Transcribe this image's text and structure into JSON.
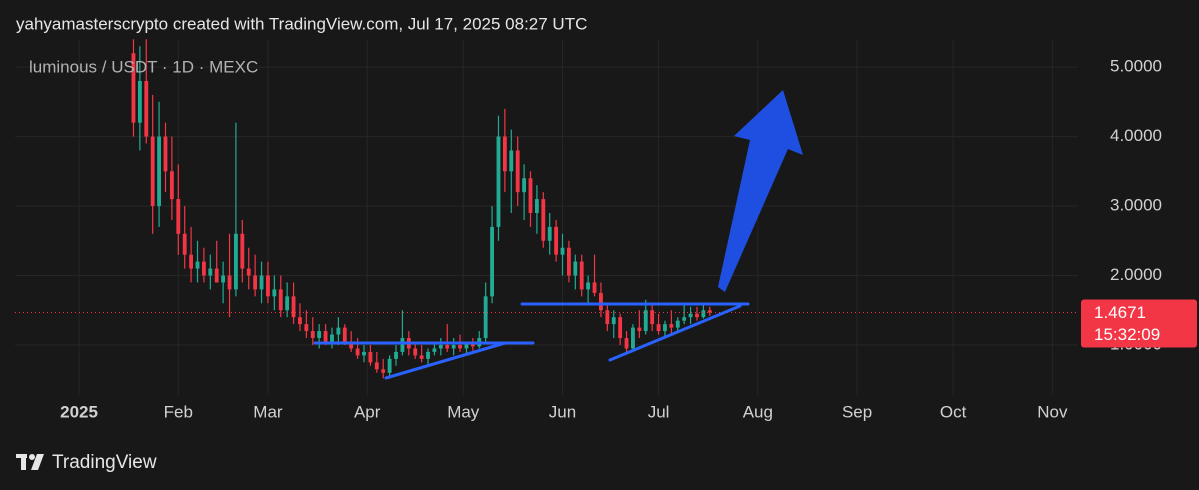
{
  "header": {
    "text": "yahyamasterscrypto created with TradingView.com, Jul 17, 2025 08:27 UTC"
  },
  "footer": {
    "brand": "TradingView"
  },
  "chart_data": {
    "type": "candlestick",
    "title": "luminous / USDT · 1D · MEXC",
    "x": [
      17,
      19,
      21,
      23,
      25,
      27,
      29,
      31,
      33,
      35,
      37,
      39,
      41,
      43,
      45,
      47,
      49,
      51,
      53,
      55,
      57,
      59,
      61,
      63,
      65,
      67,
      69,
      71,
      73,
      75,
      77,
      79,
      81,
      83,
      85,
      87,
      89,
      91,
      93,
      95,
      97,
      99,
      101,
      103,
      105,
      107,
      109,
      111,
      113,
      115,
      117,
      119,
      121,
      123,
      125,
      127,
      129,
      131,
      133,
      135,
      137,
      139,
      141,
      143,
      145,
      147,
      149,
      151,
      153,
      155,
      157,
      159,
      161,
      163,
      165,
      167,
      169,
      171,
      173,
      175,
      177,
      179,
      181,
      183,
      185,
      187,
      189,
      191,
      193,
      195,
      197
    ],
    "open": [
      5.2,
      4.2,
      4.8,
      4.0,
      3.0,
      4.0,
      3.5,
      3.1,
      2.6,
      2.3,
      2.1,
      2.2,
      2.0,
      2.1,
      1.9,
      2.0,
      1.8,
      2.6,
      2.1,
      2.0,
      1.8,
      2.0,
      1.7,
      1.8,
      1.5,
      1.7,
      1.4,
      1.3,
      1.2,
      1.1,
      1.2,
      1.05,
      1.15,
      1.25,
      1.05,
      0.95,
      0.85,
      0.9,
      0.75,
      0.65,
      0.6,
      0.8,
      0.9,
      1.1,
      0.95,
      0.85,
      0.8,
      0.9,
      0.95,
      1.0,
      0.95,
      1.0,
      0.95,
      1.02,
      0.98,
      1.1,
      1.7,
      2.7,
      4.0,
      3.5,
      3.8,
      3.2,
      3.4,
      2.9,
      3.1,
      2.5,
      2.7,
      2.3,
      2.4,
      2.0,
      2.2,
      1.8,
      1.9,
      1.75,
      1.5,
      1.3,
      1.4,
      1.1,
      0.95,
      1.25,
      1.2,
      1.5,
      1.3,
      1.2,
      1.3,
      1.25,
      1.35,
      1.4,
      1.45,
      1.4,
      1.5
    ],
    "high": [
      5.4,
      5.3,
      5.4,
      4.6,
      4.5,
      4.2,
      4.0,
      3.6,
      3.0,
      2.7,
      2.5,
      2.4,
      2.3,
      2.5,
      2.2,
      2.6,
      4.2,
      2.8,
      2.4,
      2.3,
      2.2,
      2.2,
      2.0,
      2.0,
      1.9,
      1.9,
      1.6,
      1.5,
      1.4,
      1.3,
      1.3,
      1.25,
      1.4,
      1.3,
      1.2,
      1.1,
      1.0,
      1.0,
      0.9,
      0.8,
      0.85,
      1.0,
      1.5,
      1.2,
      1.05,
      1.0,
      0.95,
      1.05,
      1.1,
      1.3,
      1.1,
      1.15,
      1.05,
      1.1,
      1.2,
      1.9,
      3.0,
      4.3,
      4.4,
      4.1,
      4.0,
      3.6,
      3.5,
      3.3,
      3.2,
      2.9,
      2.8,
      2.6,
      2.5,
      2.3,
      2.3,
      2.0,
      2.3,
      1.9,
      1.6,
      1.5,
      1.45,
      1.2,
      1.3,
      1.5,
      1.65,
      1.6,
      1.45,
      1.35,
      1.5,
      1.4,
      1.6,
      1.55,
      1.55,
      1.6,
      1.55
    ],
    "low": [
      4.0,
      3.8,
      3.9,
      2.6,
      2.7,
      3.2,
      2.8,
      2.3,
      2.1,
      1.9,
      1.9,
      1.9,
      1.8,
      1.9,
      1.6,
      1.4,
      1.7,
      1.9,
      1.8,
      1.7,
      1.6,
      1.6,
      1.5,
      1.4,
      1.4,
      1.3,
      1.2,
      1.1,
      1.0,
      0.95,
      1.0,
      0.95,
      1.0,
      1.0,
      0.9,
      0.8,
      0.75,
      0.7,
      0.6,
      0.52,
      0.55,
      0.7,
      0.85,
      0.85,
      0.8,
      0.75,
      0.72,
      0.85,
      0.85,
      0.9,
      0.85,
      0.9,
      0.88,
      0.92,
      0.95,
      1.05,
      1.6,
      2.5,
      3.2,
      2.9,
      3.0,
      2.8,
      2.7,
      2.6,
      2.4,
      2.3,
      2.2,
      2.0,
      1.9,
      1.8,
      1.7,
      1.6,
      1.7,
      1.4,
      1.2,
      1.1,
      1.0,
      0.9,
      0.92,
      1.1,
      1.15,
      1.2,
      1.15,
      1.1,
      1.15,
      1.2,
      1.3,
      1.3,
      1.35,
      1.38,
      1.42
    ],
    "close": [
      4.2,
      4.8,
      4.0,
      3.0,
      4.0,
      3.5,
      3.1,
      2.6,
      2.3,
      2.1,
      2.2,
      2.0,
      2.1,
      1.9,
      2.0,
      1.8,
      2.6,
      2.1,
      2.0,
      1.8,
      2.0,
      1.7,
      1.8,
      1.5,
      1.7,
      1.4,
      1.3,
      1.2,
      1.1,
      1.2,
      1.05,
      1.15,
      1.25,
      1.05,
      0.95,
      0.85,
      0.9,
      0.75,
      0.65,
      0.6,
      0.8,
      0.9,
      1.1,
      0.95,
      0.85,
      0.8,
      0.9,
      0.95,
      1.0,
      0.95,
      1.0,
      0.95,
      1.02,
      0.98,
      1.1,
      1.7,
      2.7,
      4.0,
      3.5,
      3.8,
      3.2,
      3.4,
      2.9,
      3.1,
      2.5,
      2.7,
      2.3,
      2.4,
      2.0,
      2.2,
      1.8,
      1.9,
      1.75,
      1.5,
      1.3,
      1.4,
      1.1,
      0.95,
      1.25,
      1.2,
      1.5,
      1.3,
      1.2,
      1.3,
      1.25,
      1.35,
      1.4,
      1.45,
      1.4,
      1.5,
      1.4671
    ],
    "up_color": "#22ab94",
    "down_color": "#f23645",
    "xlim": [
      -20,
      312
    ],
    "xticks": [
      {
        "value": 0,
        "label": "2025"
      },
      {
        "value": 31,
        "label": "Feb"
      },
      {
        "value": 59,
        "label": "Mar"
      },
      {
        "value": 90,
        "label": "Apr"
      },
      {
        "value": 120,
        "label": "May"
      },
      {
        "value": 151,
        "label": "Jun"
      },
      {
        "value": 181,
        "label": "Jul"
      },
      {
        "value": 212,
        "label": "Aug"
      },
      {
        "value": 243,
        "label": "Sep"
      },
      {
        "value": 273,
        "label": "Oct"
      },
      {
        "value": 304,
        "label": "Nov"
      }
    ],
    "ylim": [
      0.28,
      5.39
    ],
    "yticks": [
      {
        "value": 1,
        "label": "1.0000"
      },
      {
        "value": 2,
        "label": "2.0000"
      },
      {
        "value": 3,
        "label": "3.0000"
      },
      {
        "value": 4,
        "label": "4.0000"
      },
      {
        "value": 5,
        "label": "5.0000"
      }
    ],
    "grid": true,
    "last_price": 1.4671,
    "countdown": "15:32:09"
  }
}
